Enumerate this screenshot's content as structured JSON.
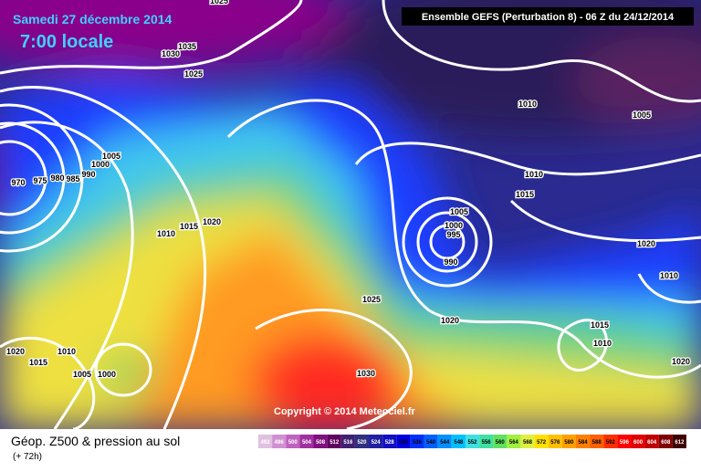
{
  "header": {
    "date": "Samedi 27 décembre 2014",
    "time": "7:00 locale",
    "model": "Ensemble GEFS  (Perturbation 8)  -  06 Z du 24/12/2014"
  },
  "copyright": "Copyright © 2014 Meteociel.fr",
  "footer": {
    "title": "Géop. Z500 & pression au sol",
    "lead": "(+ 72h)"
  },
  "isobar_labels": [
    1025,
    1035,
    1030,
    1025,
    1010,
    1005,
    1005,
    1000,
    990,
    985,
    980,
    975,
    970,
    1010,
    1015,
    1005,
    1000,
    995,
    990,
    1010,
    1015,
    1020,
    1020,
    1010,
    1025,
    1020,
    1015,
    1010,
    1020,
    1010,
    1015,
    1005,
    1000,
    1030,
    1020
  ],
  "colorbar": {
    "labels": [
      492,
      496,
      500,
      504,
      508,
      512,
      516,
      520,
      524,
      528,
      532,
      536,
      540,
      544,
      548,
      552,
      556,
      560,
      564,
      568,
      572,
      576,
      580,
      584,
      588,
      592,
      596,
      600,
      604,
      608,
      612
    ],
    "colors": [
      "#e0c0e0",
      "#d090d0",
      "#c060c0",
      "#a030a0",
      "#801080",
      "#600060",
      "#402070",
      "#303080",
      "#2020a0",
      "#1010c0",
      "#0000e0",
      "#0030ff",
      "#0060ff",
      "#0090ff",
      "#00c0ff",
      "#40e0e0",
      "#40e0a0",
      "#60e060",
      "#a0f040",
      "#e0f040",
      "#ffe000",
      "#ffc000",
      "#ffa000",
      "#ff8000",
      "#ff6000",
      "#ff3000",
      "#ff0000",
      "#e00000",
      "#c00000",
      "#800000",
      "#400000"
    ]
  }
}
